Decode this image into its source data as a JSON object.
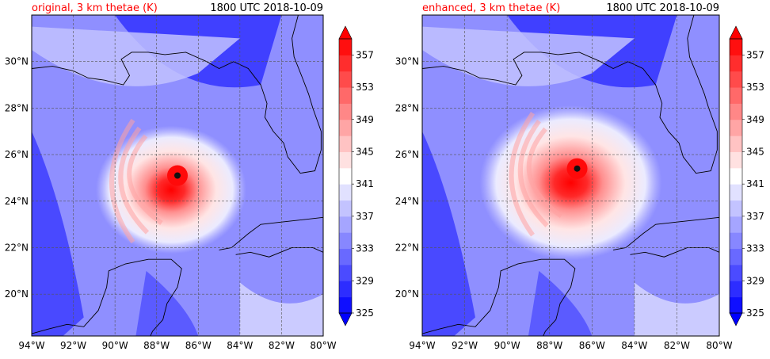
{
  "valid_time": "1800 UTC 2018-10-09",
  "chart_data": [
    {
      "type": "heatmap",
      "title": "original, 3 km thetae (K)",
      "time_label": "1800 UTC 2018-10-09",
      "xlim": [
        -94,
        -80
      ],
      "ylim": [
        18.2,
        32.0
      ],
      "x_ticks": [
        -94,
        -92,
        -90,
        -88,
        -86,
        -84,
        -82,
        -80
      ],
      "x_tick_labels": [
        "94°W",
        "92°W",
        "90°W",
        "88°W",
        "86°W",
        "84°W",
        "82°W",
        "80°W"
      ],
      "y_ticks": [
        20,
        22,
        24,
        26,
        28,
        30
      ],
      "y_tick_labels": [
        "20°N",
        "22°N",
        "24°N",
        "26°N",
        "28°N",
        "30°N"
      ],
      "grid": true,
      "storm_center": {
        "lon": -87.0,
        "lat": 25.1
      },
      "colorbar": {
        "ticks": [
          325,
          329,
          333,
          337,
          341,
          345,
          349,
          353,
          357
        ],
        "levels": [
          325,
          327,
          329,
          331,
          333,
          335,
          337,
          339,
          341,
          343,
          345,
          347,
          349,
          351,
          353,
          355,
          357,
          359
        ],
        "extend": "both",
        "colormap": "bwr"
      }
    },
    {
      "type": "heatmap",
      "title": "enhanced, 3 km thetae (K)",
      "time_label": "1800 UTC 2018-10-09",
      "xlim": [
        -94,
        -80
      ],
      "ylim": [
        18.2,
        32.0
      ],
      "x_ticks": [
        -94,
        -92,
        -90,
        -88,
        -86,
        -84,
        -82,
        -80
      ],
      "x_tick_labels": [
        "94°W",
        "92°W",
        "90°W",
        "88°W",
        "86°W",
        "84°W",
        "82°W",
        "80°W"
      ],
      "y_ticks": [
        20,
        22,
        24,
        26,
        28,
        30
      ],
      "y_tick_labels": [
        "20°N",
        "22°N",
        "24°N",
        "26°N",
        "28°N",
        "30°N"
      ],
      "grid": true,
      "storm_center": {
        "lon": -86.7,
        "lat": 25.4
      },
      "colorbar": {
        "ticks": [
          325,
          329,
          333,
          337,
          341,
          345,
          349,
          353,
          357
        ],
        "levels": [
          325,
          327,
          329,
          331,
          333,
          335,
          337,
          339,
          341,
          343,
          345,
          347,
          349,
          351,
          353,
          355,
          357,
          359
        ],
        "extend": "both",
        "colormap": "bwr"
      }
    }
  ]
}
